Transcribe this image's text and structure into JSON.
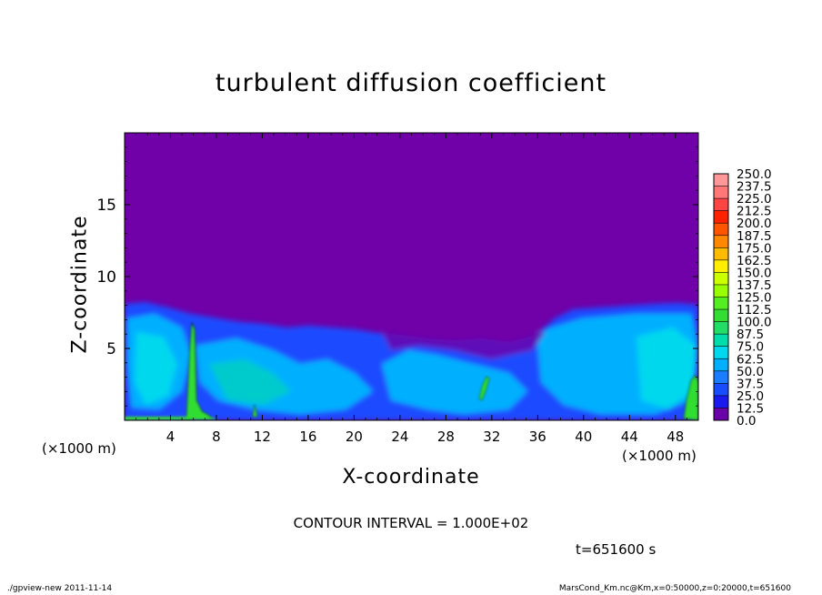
{
  "chart_data": {
    "type": "heatmap",
    "title": "turbulent diffusion coefficient",
    "xlabel": "X-coordinate",
    "ylabel": "Z-coordinate",
    "x_unit": "(×1000 m)",
    "xlim": [
      0,
      50
    ],
    "ylim": [
      0,
      20
    ],
    "x_ticks": [
      4,
      8,
      12,
      16,
      20,
      24,
      28,
      32,
      36,
      40,
      44,
      48
    ],
    "y_ticks": [
      5,
      10,
      15
    ],
    "contour_interval": "CONTOUR INTERVAL = 1.000E+02",
    "time_label": "t=651600 s",
    "colorbar": {
      "labels": [
        "250.0",
        "237.5",
        "225.0",
        "212.5",
        "200.0",
        "187.5",
        "175.0",
        "162.5",
        "150.0",
        "137.5",
        "125.0",
        "112.5",
        "100.0",
        "87.5",
        "75.0",
        "62.5",
        "50.0",
        "37.5",
        "25.0",
        "12.5",
        "0.0"
      ],
      "colors": [
        "#ff9999",
        "#ff7777",
        "#ff4444",
        "#ff2200",
        "#ff5500",
        "#ff8800",
        "#ffbb00",
        "#ffee00",
        "#ccff00",
        "#99ff00",
        "#55ee22",
        "#33dd33",
        "#22dd66",
        "#00ddaa",
        "#00d8ee",
        "#00b0ff",
        "#1a7cff",
        "#1a4cff",
        "#1a1aee",
        "#6a00a8"
      ]
    },
    "field_description_levels": {
      "background": 0.0,
      "boundary_layer_top_km": 8,
      "plume_near_x_km": [
        6,
        49
      ]
    }
  },
  "footer": {
    "left": "./gpview-new   2011-11-14",
    "right": "MarsCond_Km.nc@Km,x=0:50000,z=0:20000,t=651600"
  }
}
